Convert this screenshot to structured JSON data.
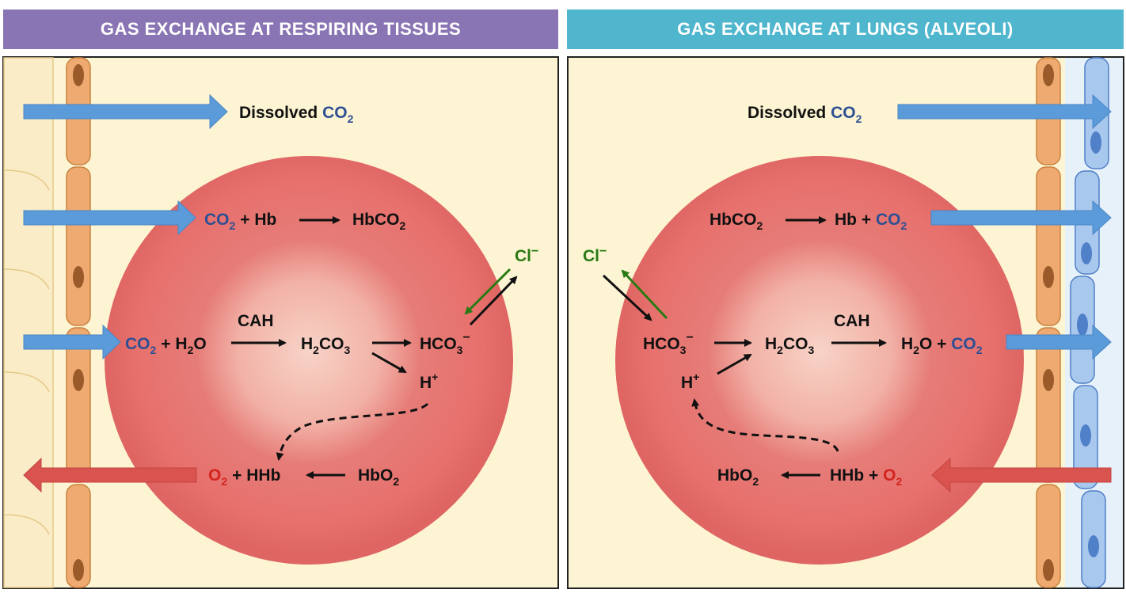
{
  "headers": {
    "left": "GAS EXCHANGE AT RESPIRING TISSUES",
    "right": "GAS EXCHANGE AT LUNGS (ALVEOLI)"
  },
  "left": {
    "dissolved": "Dissolved",
    "co2": "CO",
    "sub2": "2",
    "hb": "+ Hb",
    "hbco2": "HbCO",
    "plus_h2o": "+ H",
    "o": "O",
    "cah": "CAH",
    "h2co3_h": "H",
    "h2co3_co": "CO",
    "h2co3_3": "3",
    "hco3": "HCO",
    "hco3_sub": "3",
    "minus": "−",
    "cl": "Cl",
    "h_plus": "H",
    "plus_sup": "+",
    "o2": "O",
    "hhb": "+ HHb",
    "hbo2": "HbO"
  },
  "right": {
    "dissolved": "Dissolved",
    "co2": "CO",
    "sub2": "2",
    "hbco2": "HbCO",
    "hb_plus": "Hb +",
    "cl": "Cl",
    "minus": "−",
    "hco3": "HCO",
    "hco3_sub": "3",
    "h2co3_h": "H",
    "h2co3_co": "CO",
    "h2co3_3": "3",
    "cah": "CAH",
    "h2o_h": "H",
    "h2o_o": "O +",
    "h_plus": "H",
    "plus_sup": "+",
    "hbo2": "HbO",
    "hhb_plus": "HHb +",
    "o2": "O"
  },
  "colors": {
    "left_header": "#8a75b4",
    "right_header": "#4fb6cd",
    "background": "#fdf4d3",
    "cell": "#e7706c",
    "blue_arrow": "#5b9bd9",
    "red_arrow": "#d9534f",
    "green_arrow": "#2a7a14",
    "co2_text": "#2e4f93",
    "o2_text": "#d3241f"
  }
}
